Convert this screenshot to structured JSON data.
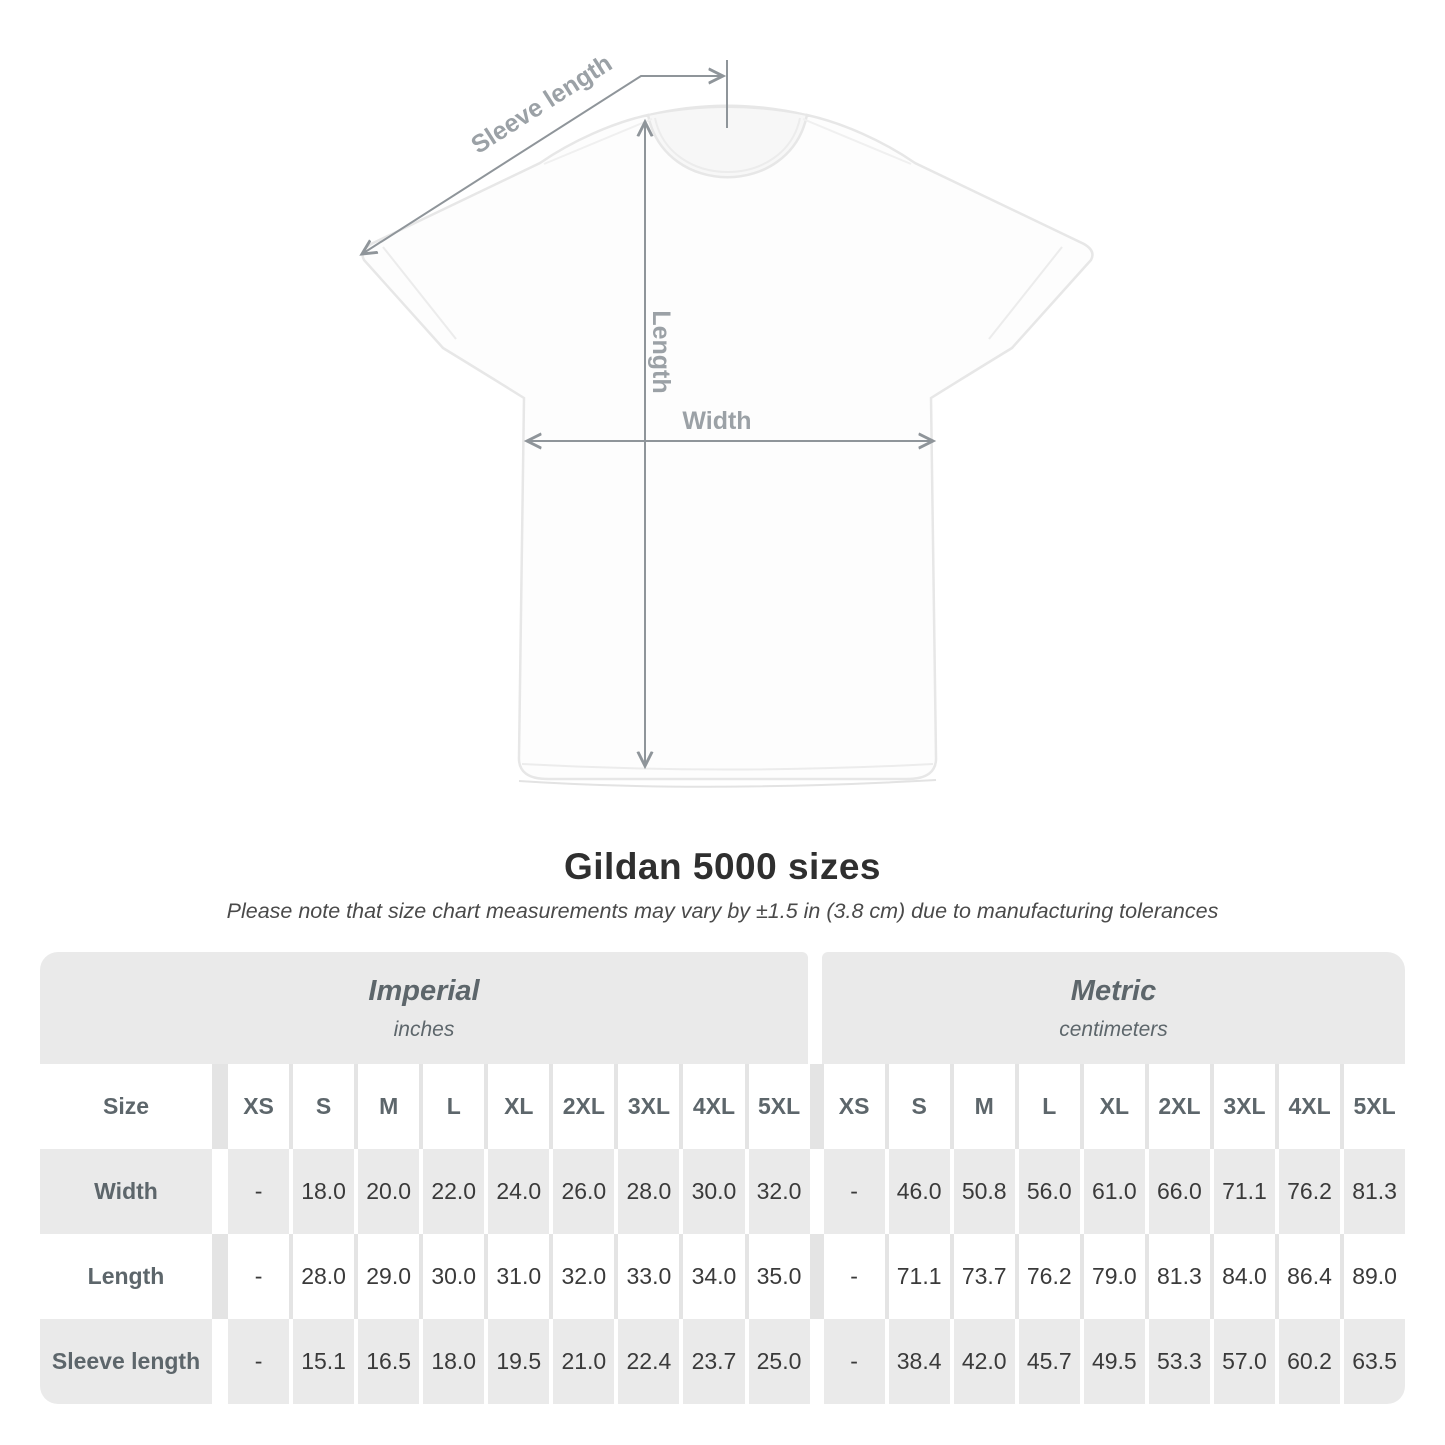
{
  "diagram": {
    "labels": {
      "sleeve_length": "Sleeve length",
      "length": "Length",
      "width": "Width"
    }
  },
  "title": "Gildan 5000 sizes",
  "subtitle": "Please note that size chart measurements may vary by ±1.5 in (3.8 cm) due to manufacturing tolerances",
  "chart_data": {
    "type": "table",
    "title": "Gildan 5000 sizes",
    "unit_sections": [
      {
        "label": "Imperial",
        "unit": "inches"
      },
      {
        "label": "Metric",
        "unit": "centimeters"
      }
    ],
    "size_column_header": "Size",
    "sizes": [
      "XS",
      "S",
      "M",
      "L",
      "XL",
      "2XL",
      "3XL",
      "4XL",
      "5XL"
    ],
    "missing_value": "-",
    "rows": [
      {
        "label": "Width",
        "imperial": [
          "-",
          "18.0",
          "20.0",
          "22.0",
          "24.0",
          "26.0",
          "28.0",
          "30.0",
          "32.0"
        ],
        "metric": [
          "-",
          "46.0",
          "50.8",
          "56.0",
          "61.0",
          "66.0",
          "71.1",
          "76.2",
          "81.3"
        ]
      },
      {
        "label": "Length",
        "imperial": [
          "-",
          "28.0",
          "29.0",
          "30.0",
          "31.0",
          "32.0",
          "33.0",
          "34.0",
          "35.0"
        ],
        "metric": [
          "-",
          "71.1",
          "73.7",
          "76.2",
          "79.0",
          "81.3",
          "84.0",
          "86.4",
          "89.0"
        ]
      },
      {
        "label": "Sleeve length",
        "imperial": [
          "-",
          "15.1",
          "16.5",
          "18.0",
          "19.5",
          "21.0",
          "22.4",
          "23.7",
          "25.0"
        ],
        "metric": [
          "-",
          "38.4",
          "42.0",
          "45.7",
          "49.5",
          "53.3",
          "57.0",
          "60.2",
          "63.5"
        ]
      }
    ]
  },
  "colors": {
    "table_band": "#eaeaea",
    "header_text": "#5d666b",
    "value_text": "#3a3a3a",
    "title_text": "#2f2f2f",
    "diagram_line": "#8f959a",
    "diagram_label": "#9ba1a6",
    "shirt_outline": "#e7e7e7"
  }
}
